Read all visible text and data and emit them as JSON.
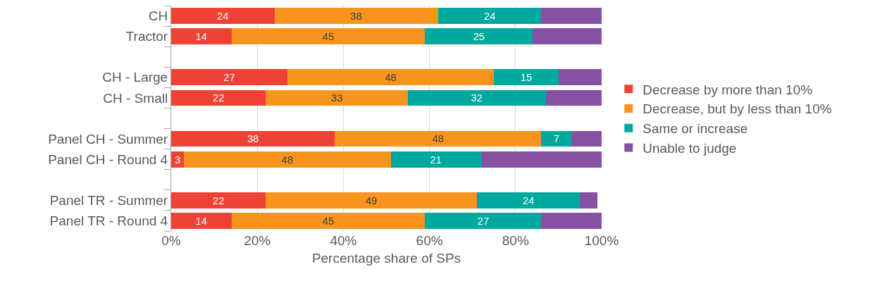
{
  "chart_data": {
    "type": "bar",
    "orientation": "horizontal",
    "stacked": true,
    "categories": [
      "CH",
      "Tractor",
      null,
      "CH - Large",
      "CH - Small",
      null,
      "Panel CH - Summer",
      "Panel CH - Round 4",
      null,
      "Panel TR - Summer",
      "Panel TR - Round 4"
    ],
    "series": [
      {
        "name": "Decrease by more than 10%",
        "color": "#ef4136",
        "values": [
          24,
          14,
          null,
          27,
          22,
          null,
          38,
          3,
          null,
          22,
          14
        ],
        "value_labels": [
          "24",
          "14",
          null,
          "27",
          "22",
          null,
          "38",
          "3",
          null,
          "22",
          "14"
        ]
      },
      {
        "name": "Decrease, but by less than 10%",
        "color": "#f7941d",
        "values": [
          38,
          45,
          null,
          48,
          33,
          null,
          48,
          48,
          null,
          49,
          45
        ],
        "value_labels": [
          "38",
          "45",
          null,
          "48",
          "33",
          null,
          "48",
          "48",
          null,
          "49",
          "45"
        ]
      },
      {
        "name": "Same or increase",
        "color": "#00a99d",
        "values": [
          24,
          25,
          null,
          15,
          32,
          null,
          7,
          21,
          null,
          24,
          27
        ],
        "value_labels": [
          "24",
          "25",
          null,
          "15",
          "32",
          null,
          "7",
          "21",
          null,
          "24",
          "27"
        ]
      },
      {
        "name": "Unable to judge",
        "color": "#8651a3",
        "values": [
          14,
          16,
          null,
          10,
          13,
          null,
          7,
          28,
          null,
          4,
          14
        ]
      }
    ],
    "xlim": [
      0,
      100
    ],
    "xticks": [
      {
        "value": 0,
        "label": "0%"
      },
      {
        "value": 20,
        "label": "20%"
      },
      {
        "value": 40,
        "label": "40%"
      },
      {
        "value": 60,
        "label": "60%"
      },
      {
        "value": 80,
        "label": "80%"
      },
      {
        "value": 100,
        "label": "100%"
      }
    ],
    "xlabel": "Percentage share of SPs",
    "grid": "x",
    "legend": "right"
  }
}
